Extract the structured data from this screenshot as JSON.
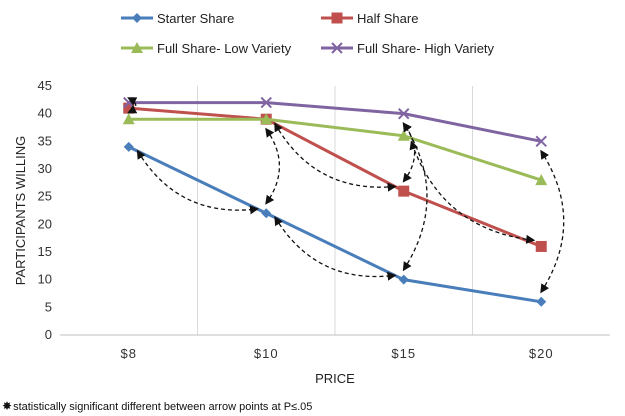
{
  "chart_data": {
    "type": "line",
    "categories": [
      "$8",
      "$10",
      "$15",
      "$20"
    ],
    "xlabel": "PRICE",
    "ylabel": "PARTICIPANTS WILLING",
    "ylim": [
      0,
      45
    ],
    "yticks": [
      0,
      5,
      10,
      15,
      20,
      25,
      30,
      35,
      40,
      45
    ],
    "grid": "vertical",
    "legend_position": "top",
    "series": [
      {
        "name": "Starter Share",
        "values": [
          34,
          22,
          10,
          6
        ],
        "color": "#4a7ebb",
        "marker": "diamond"
      },
      {
        "name": "Half Share",
        "values": [
          41,
          39,
          26,
          16
        ],
        "color": "#c0504d",
        "marker": "square"
      },
      {
        "name": "Full Share- Low Variety",
        "values": [
          39,
          39,
          36,
          28
        ],
        "color": "#9bbb59",
        "marker": "triangle"
      },
      {
        "name": "Full Share- High Variety",
        "values": [
          42,
          42,
          40,
          35
        ],
        "color": "#8064a2",
        "marker": "x"
      }
    ],
    "significance_arrows": [
      {
        "from": [
          "Starter Share",
          "$8"
        ],
        "to": [
          "Starter Share",
          "$10"
        ]
      },
      {
        "from": [
          "Starter Share",
          "$10"
        ],
        "to": [
          "Starter Share",
          "$15"
        ]
      },
      {
        "from": [
          "Half Share",
          "$8"
        ],
        "to": [
          "Full Share- High Variety",
          "$8"
        ]
      },
      {
        "from": [
          "Half Share",
          "$10"
        ],
        "to": [
          "Half Share",
          "$15"
        ]
      },
      {
        "from": [
          "Starter Share",
          "$15"
        ],
        "to": [
          "Full Share- High Variety",
          "$15"
        ]
      },
      {
        "from": [
          "Half Share",
          "$15"
        ],
        "to": [
          "Full Share- High Variety",
          "$15"
        ]
      },
      {
        "from": [
          "Half Share",
          "$20"
        ],
        "to": [
          "Full Share- Low Variety",
          "$15"
        ]
      },
      {
        "from": [
          "Starter Share",
          "$20"
        ],
        "to": [
          "Full Share- High Variety",
          "$20"
        ]
      },
      {
        "from": [
          "Half Share",
          "$10"
        ],
        "to": [
          "Starter Share",
          "$10"
        ]
      }
    ]
  },
  "footnote": {
    "symbol": "✸",
    "text": "statistically significant different between arrow points at P≤.05"
  }
}
